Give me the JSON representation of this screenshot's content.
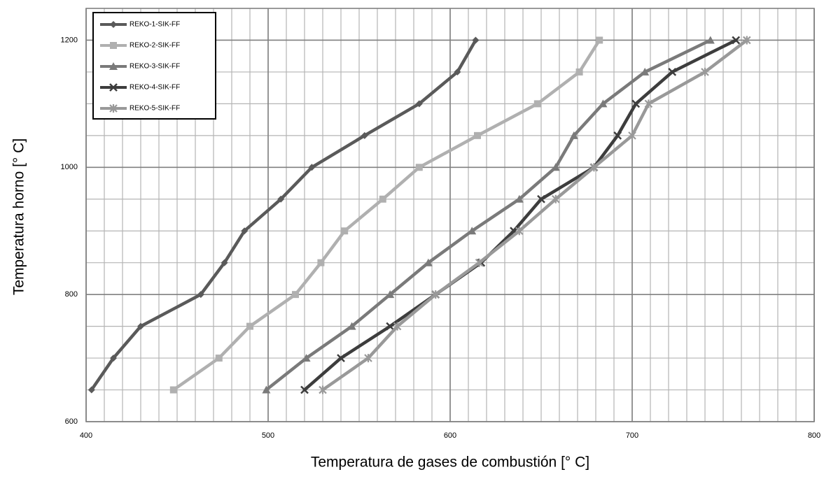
{
  "chart_data": {
    "type": "line",
    "xlabel": "Temperatura de gases de combustión [° C]",
    "ylabel": "Temperatura horno [° C]",
    "xlim": [
      400,
      800
    ],
    "ylim": [
      600,
      1250
    ],
    "xticks": [
      400,
      500,
      600,
      700,
      800
    ],
    "yticks": [
      600,
      800,
      1000,
      1200
    ],
    "grid": true,
    "minor_grid": {
      "x": 10,
      "y": 50
    },
    "legend": "upper left",
    "series": [
      {
        "name": "REKO-1-SIK-FF",
        "color": "#5a5a5a",
        "marker": "diamond",
        "x": [
          403,
          415,
          430,
          463,
          476,
          487,
          507,
          524,
          553,
          583,
          604,
          614
        ],
        "values": [
          650,
          700,
          750,
          800,
          850,
          900,
          950,
          1000,
          1050,
          1100,
          1150,
          1200
        ]
      },
      {
        "name": "REKO-2-SIK-FF",
        "color": "#b0b0b0",
        "marker": "square",
        "x": [
          448,
          473,
          490,
          515,
          529,
          542,
          563,
          583,
          615,
          648,
          671,
          682
        ],
        "values": [
          650,
          700,
          750,
          800,
          850,
          900,
          950,
          1000,
          1050,
          1100,
          1150,
          1200
        ]
      },
      {
        "name": "REKO-3-SIK-FF",
        "color": "#7a7a7a",
        "marker": "triangle",
        "x": [
          499,
          521,
          546,
          567,
          588,
          612,
          638,
          658,
          668,
          684,
          707,
          743
        ],
        "values": [
          650,
          700,
          750,
          800,
          850,
          900,
          950,
          1000,
          1050,
          1100,
          1150,
          1200
        ]
      },
      {
        "name": "REKO-4-SIK-FF",
        "color": "#3d3d3d",
        "marker": "x",
        "x": [
          520,
          540,
          567,
          592,
          617,
          635,
          650,
          679,
          692,
          702,
          722,
          757
        ],
        "values": [
          650,
          700,
          750,
          800,
          850,
          900,
          950,
          1000,
          1050,
          1100,
          1150,
          1200
        ]
      },
      {
        "name": "REKO-5-SIK-FF",
        "color": "#999999",
        "marker": "star",
        "x": [
          530,
          555,
          571,
          592,
          616,
          638,
          658,
          679,
          700,
          709,
          740,
          763
        ],
        "values": [
          650,
          700,
          750,
          800,
          850,
          900,
          950,
          1000,
          1050,
          1100,
          1150,
          1200
        ]
      }
    ]
  }
}
